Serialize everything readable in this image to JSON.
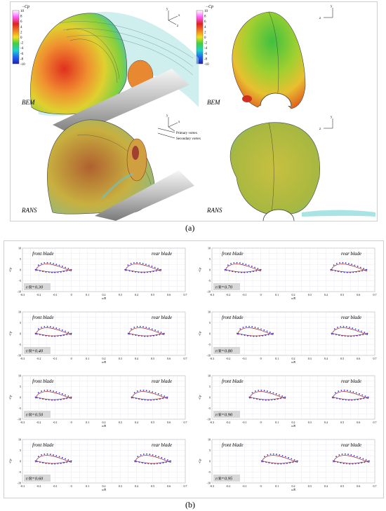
{
  "caption_a": "(a)",
  "caption_b": "(b)",
  "top": {
    "cp_label": "−Cp",
    "colorbar_ticks": [
      "10",
      "8",
      "6",
      "4",
      "2",
      "0",
      "-2",
      "-4",
      "-6",
      "-8",
      "-10"
    ],
    "labels": [
      "BEM",
      "BEM",
      "RANS",
      "RANS"
    ],
    "primary_vortex": "Primary vortex",
    "secondary_vortex": "Secondary vortex",
    "axes": {
      "y": "y",
      "x": "x",
      "z": "z"
    }
  },
  "colors": {
    "bem": "#3030d0",
    "rans": "#a02020"
  },
  "chart_data": [
    {
      "type": "line",
      "panel": "r/R=0.30",
      "left": "front blade",
      "right": "rear blade",
      "xlabel": "x/R",
      "ylabel": "-Cp",
      "xlim": [
        -0.3,
        0.7
      ],
      "ylim": [
        -10,
        10
      ],
      "xticks": [
        "-0.3",
        "-0.2",
        "-0.1",
        "0",
        "0.1",
        "0.2",
        "0.3",
        "0.4",
        "0.5",
        "0.6",
        "0.7"
      ],
      "yticks": [
        "10",
        "5",
        "0",
        "-5",
        "-10"
      ]
    },
    {
      "type": "line",
      "panel": "r/R=0.70",
      "left": "front blade",
      "right": "rear blade",
      "xlabel": "x/R",
      "ylabel": "-Cp",
      "xlim": [
        -0.3,
        0.7
      ],
      "ylim": [
        -10,
        10
      ],
      "xticks": [
        "-0.3",
        "-0.2",
        "-0.1",
        "0",
        "0.1",
        "0.2",
        "0.3",
        "0.4",
        "0.5",
        "0.6",
        "0.7"
      ],
      "yticks": [
        "10",
        "5",
        "0",
        "-5",
        "-10"
      ]
    },
    {
      "type": "line",
      "panel": "r/R=0.40",
      "left": "front blade",
      "right": "rear blade",
      "xlabel": "x/R",
      "ylabel": "-Cp",
      "xlim": [
        -0.3,
        0.7
      ],
      "ylim": [
        -10,
        10
      ],
      "xticks": [
        "-0.3",
        "-0.2",
        "-0.1",
        "0",
        "0.1",
        "0.2",
        "0.3",
        "0.4",
        "0.5",
        "0.6",
        "0.7"
      ],
      "yticks": [
        "10",
        "5",
        "0",
        "-5",
        "-10"
      ]
    },
    {
      "type": "line",
      "panel": "r/R=0.80",
      "left": "front blade",
      "right": "rear blade",
      "xlabel": "x/R",
      "ylabel": "-Cp",
      "xlim": [
        -0.3,
        0.7
      ],
      "ylim": [
        -10,
        10
      ],
      "xticks": [
        "-0.3",
        "-0.2",
        "-0.1",
        "0",
        "0.1",
        "0.2",
        "0.3",
        "0.4",
        "0.5",
        "0.6",
        "0.7"
      ],
      "yticks": [
        "10",
        "5",
        "0",
        "-5",
        "-10"
      ]
    },
    {
      "type": "line",
      "panel": "r/R=0.50",
      "left": "front blade",
      "right": "rear blade",
      "xlabel": "x/R",
      "ylabel": "-Cp",
      "xlim": [
        -0.3,
        0.7
      ],
      "ylim": [
        -10,
        10
      ],
      "xticks": [
        "-0.3",
        "-0.2",
        "-0.1",
        "0",
        "0.1",
        "0.2",
        "0.3",
        "0.4",
        "0.5",
        "0.6",
        "0.7"
      ],
      "yticks": [
        "10",
        "5",
        "0",
        "-5",
        "-10"
      ]
    },
    {
      "type": "line",
      "panel": "r/R=0.90",
      "left": "front blade",
      "right": "rear blade",
      "xlabel": "x/R",
      "ylabel": "-Cp",
      "xlim": [
        -0.3,
        0.7
      ],
      "ylim": [
        -10,
        10
      ],
      "xticks": [
        "-0.3",
        "-0.2",
        "-0.1",
        "0",
        "0.1",
        "0.2",
        "0.3",
        "0.4",
        "0.5",
        "0.6",
        "0.7"
      ],
      "yticks": [
        "10",
        "5",
        "0",
        "-5",
        "-10"
      ]
    },
    {
      "type": "line",
      "panel": "r/R=0.60",
      "left": "front blade",
      "right": "rear blade",
      "xlabel": "x/R",
      "ylabel": "-Cp",
      "xlim": [
        -0.3,
        0.7
      ],
      "ylim": [
        -10,
        10
      ],
      "xticks": [
        "-0.3",
        "-0.2",
        "-0.1",
        "0",
        "0.1",
        "0.2",
        "0.3",
        "0.4",
        "0.5",
        "0.6",
        "0.7"
      ],
      "yticks": [
        "10",
        "5",
        "0",
        "-5",
        "-10"
      ]
    },
    {
      "type": "line",
      "panel": "r/R=0.95",
      "left": "front blade",
      "right": "rear blade",
      "xlabel": "x/R",
      "ylabel": "-Cp",
      "xlim": [
        -0.3,
        0.7
      ],
      "ylim": [
        -10,
        10
      ],
      "xticks": [
        "-0.3",
        "-0.2",
        "-0.1",
        "0",
        "0.1",
        "0.2",
        "0.3",
        "0.4",
        "0.5",
        "0.6",
        "0.7"
      ],
      "yticks": [
        "10",
        "5",
        "0",
        "-5",
        "-10"
      ]
    }
  ]
}
